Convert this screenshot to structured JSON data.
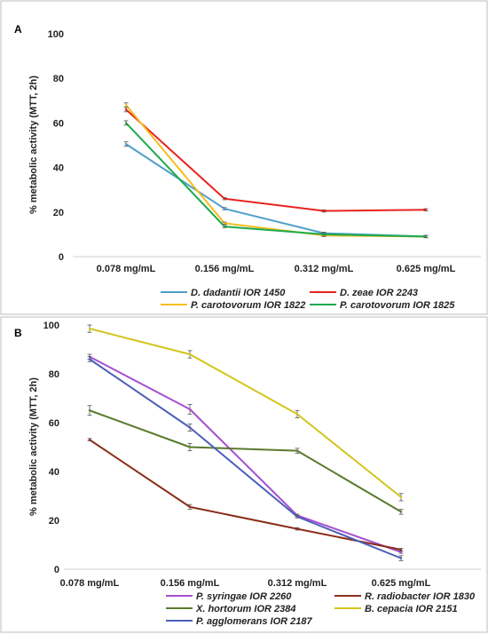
{
  "chart_data": [
    {
      "panel": "A",
      "type": "line",
      "ylabel": "% metabolic activity (MTT, 2h)",
      "xlabel": "",
      "categories": [
        "0.078 mg/mL",
        "0.156 mg/mL",
        "0.312 mg/mL",
        "0.625 mg/mL"
      ],
      "ylim": [
        0,
        100
      ],
      "yticks": [
        0,
        20,
        40,
        60,
        80,
        100
      ],
      "grid": false,
      "legend_position": "bottom",
      "series": [
        {
          "name": "D. dadantii IOR 1450",
          "color": "#4f9fc9",
          "values": [
            50.5,
            21.5,
            10.5,
            9
          ],
          "errors": [
            1,
            0.5,
            0.5,
            0.5
          ]
        },
        {
          "name": "D.  zeae IOR 2243",
          "color": "#e8231f",
          "values": [
            66,
            26,
            20.5,
            21
          ],
          "errors": [
            1,
            0.5,
            0.5,
            0.5
          ]
        },
        {
          "name": "P. carotovorum IOR 1822",
          "color": "#f5bd1f",
          "values": [
            68,
            15,
            9.5,
            9
          ],
          "errors": [
            1,
            0.5,
            0.5,
            0.5
          ]
        },
        {
          "name": "P. carotovorum IOR 1825",
          "color": "#1eaa4e",
          "values": [
            60,
            13.5,
            10,
            9
          ],
          "errors": [
            1,
            0.5,
            0.5,
            0.5
          ]
        }
      ]
    },
    {
      "panel": "B",
      "type": "line",
      "ylabel": "% metabolic activity (MTT, 2h)",
      "xlabel": "",
      "categories": [
        "0.078 mg/mL",
        "0.156 mg/mL",
        "0.312 mg/mL",
        "0.625 mg/mL"
      ],
      "ylim": [
        0,
        100
      ],
      "yticks": [
        0,
        20,
        40,
        60,
        80,
        100
      ],
      "grid": false,
      "legend_position": "bottom",
      "series": [
        {
          "name": "P. syringae IOR 2260",
          "color": "#a64fd0",
          "values": [
            87,
            65.5,
            22,
            7
          ],
          "errors": [
            1,
            2,
            0.5,
            0.5
          ]
        },
        {
          "name": "R. radiobacter IOR 1830",
          "color": "#8b2e1a",
          "values": [
            53,
            25.5,
            16.5,
            8
          ],
          "errors": [
            0.5,
            1,
            0.5,
            0.5
          ]
        },
        {
          "name": "X. hortorum IOR 2384",
          "color": "#5a7a2e",
          "values": [
            65,
            50,
            48.5,
            23.5
          ],
          "errors": [
            2,
            1.5,
            1,
            1
          ]
        },
        {
          "name": "B. cepacia IOR 2151",
          "color": "#d4c41c",
          "values": [
            98.5,
            88,
            63.5,
            29.5
          ],
          "errors": [
            1.5,
            1.5,
            1.5,
            1.5
          ]
        },
        {
          "name": "P. agglomerans IOR 2187",
          "color": "#4b5fb8",
          "values": [
            86,
            58,
            21.5,
            4.5
          ],
          "errors": [
            1,
            1.5,
            0.5,
            1
          ]
        }
      ]
    }
  ]
}
